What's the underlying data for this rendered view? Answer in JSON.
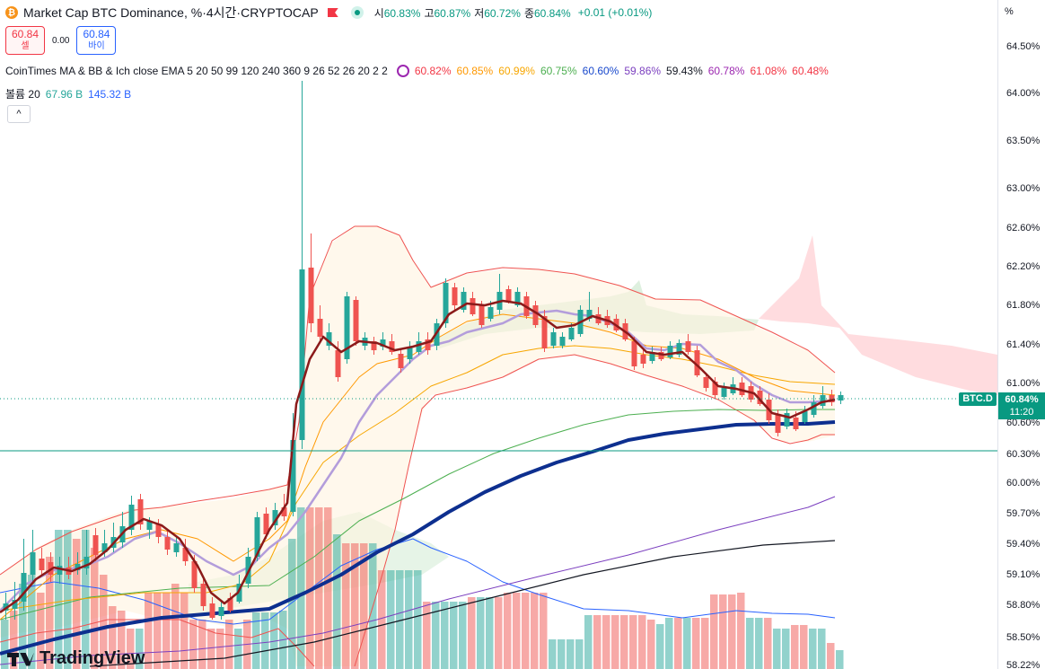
{
  "header": {
    "coin_icon": "bitcoin-icon",
    "coin_glyph": "₿",
    "title": "Market Cap BTC Dominance, %",
    "interval": "4시간",
    "exchange": "CRYPTOCAP",
    "separator": " · ",
    "ohlc": {
      "open_label": "시",
      "open": "60.83%",
      "high_label": "고",
      "high": "60.87%",
      "low_label": "저",
      "low": "60.72%",
      "close_label": "종",
      "close": "60.84%",
      "change": "+0.01 (+0.01%)"
    }
  },
  "trade": {
    "sell_price": "60.84",
    "sell_label": "셀",
    "spread": "0.00",
    "buy_price": "60.84",
    "buy_label": "바이"
  },
  "indicators": {
    "main_name": "CoinTimes MA & BB & Ich close EMA 5 20 50 99 120 240 360 9 26 52 26 20 2 2",
    "values": [
      {
        "v": "60.82%",
        "color": "#f23645"
      },
      {
        "v": "60.85%",
        "color": "#ff9800"
      },
      {
        "v": "60.99%",
        "color": "#f7a600"
      },
      {
        "v": "60.75%",
        "color": "#4caf50"
      },
      {
        "v": "60.60%",
        "color": "#1848cc"
      },
      {
        "v": "59.86%",
        "color": "#7b3fbf"
      },
      {
        "v": "59.43%",
        "color": "#131722"
      },
      {
        "v": "60.78%",
        "color": "#9c27b0"
      },
      {
        "v": "61.08%",
        "color": "#f23645"
      },
      {
        "v": "60.48%",
        "color": "#f23645"
      }
    ],
    "volume_name": "볼륨 20",
    "volume_value": "67.96 B",
    "volume_ma": "145.32 B"
  },
  "collapse_glyph": "^",
  "price_axis": {
    "unit": "%",
    "labels": [
      "64.50%",
      "64.00%",
      "63.50%",
      "63.00%",
      "62.60%",
      "62.20%",
      "61.80%",
      "61.40%",
      "61.00%",
      "60.60%",
      "60.30%",
      "60.00%",
      "59.70%",
      "59.40%",
      "59.10%",
      "58.80%",
      "58.50%",
      "58.22%"
    ],
    "current_symbol": "BTC.D",
    "current_price": "60.84%",
    "countdown": "11:20"
  },
  "logo_text": "TradingView",
  "colors": {
    "up": "#26a69a",
    "down": "#ef5350",
    "accent": "#2962ff",
    "horizontal_line": "#089981"
  }
}
